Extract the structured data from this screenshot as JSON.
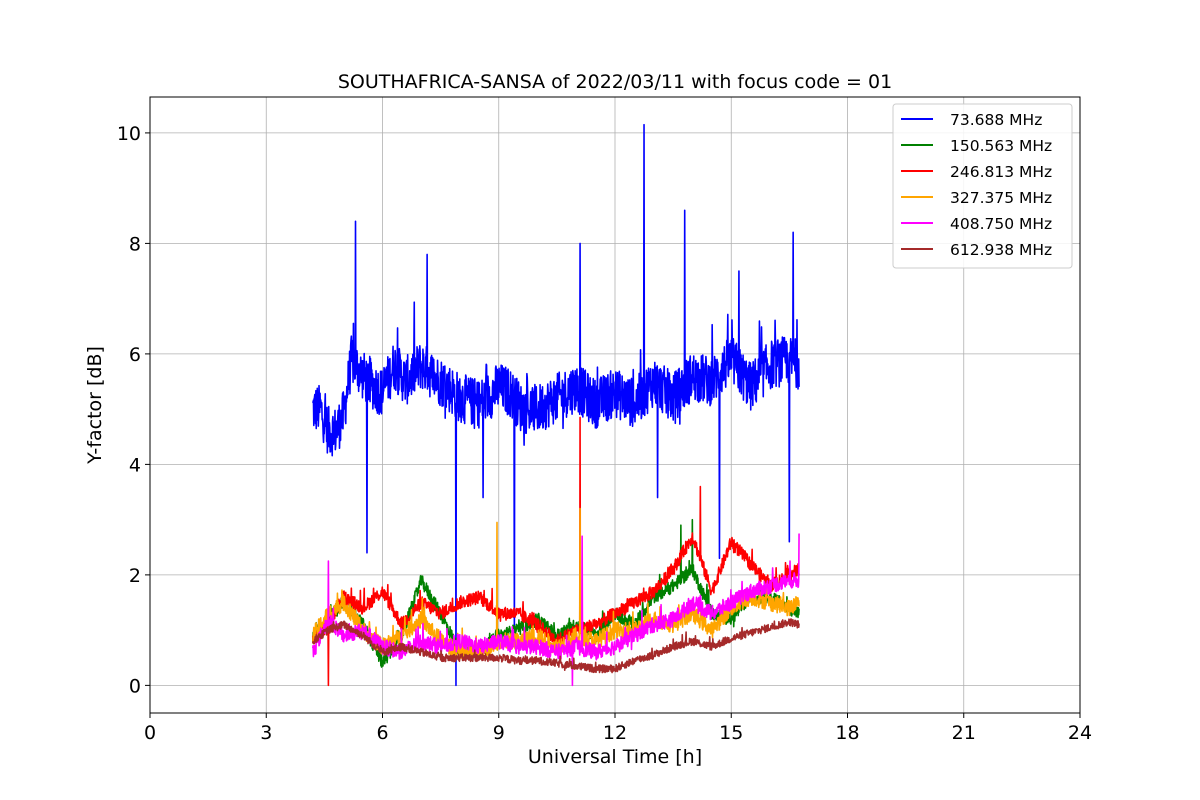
{
  "chart_data": {
    "type": "line",
    "title": "SOUTHAFRICA-SANSA of 2022/03/11 with focus code = 01",
    "xlabel": "Universal Time [h]",
    "ylabel": "Y-factor [dB]",
    "xlim": [
      0,
      24
    ],
    "ylim": [
      -0.5,
      10.65
    ],
    "xticks": [
      0,
      3,
      6,
      9,
      12,
      15,
      18,
      21,
      24
    ],
    "yticks": [
      0,
      2,
      4,
      6,
      8,
      10
    ],
    "grid": true,
    "legend_position": "top-right",
    "series": [
      {
        "name": "73.688 MHz",
        "color": "#0000ff",
        "noise": 0.45,
        "x": [
          4.2,
          4.4,
          4.6,
          4.8,
          5.0,
          5.2,
          5.5,
          5.8,
          6.0,
          6.3,
          6.6,
          7.0,
          7.3,
          7.7,
          8.0,
          8.5,
          9.0,
          9.3,
          9.6,
          10.0,
          10.5,
          11.0,
          11.5,
          12.0,
          12.5,
          13.0,
          13.5,
          14.0,
          14.5,
          15.0,
          15.5,
          16.0,
          16.5,
          16.75
        ],
        "y": [
          5.0,
          5.0,
          4.6,
          4.6,
          4.9,
          5.9,
          5.6,
          5.4,
          5.3,
          5.8,
          5.5,
          5.8,
          5.6,
          5.4,
          5.2,
          5.1,
          5.4,
          5.3,
          5.0,
          5.0,
          5.2,
          5.4,
          5.1,
          5.3,
          5.1,
          5.5,
          5.2,
          5.6,
          5.5,
          5.9,
          5.4,
          5.8,
          5.9,
          5.8
        ],
        "spikes": [
          [
            5.3,
            8.4
          ],
          [
            5.6,
            2.4
          ],
          [
            7.15,
            7.8
          ],
          [
            7.9,
            0.0
          ],
          [
            8.6,
            3.4
          ],
          [
            9.4,
            0.7
          ],
          [
            11.1,
            8.0
          ],
          [
            12.75,
            10.15
          ],
          [
            13.1,
            3.4
          ],
          [
            13.8,
            8.6
          ],
          [
            14.7,
            2.3
          ],
          [
            15.2,
            7.5
          ],
          [
            16.5,
            2.6
          ],
          [
            16.6,
            8.2
          ]
        ]
      },
      {
        "name": "150.563 MHz",
        "color": "#008000",
        "noise": 0.12,
        "x": [
          4.2,
          4.6,
          5.0,
          5.5,
          6.0,
          6.5,
          7.0,
          7.5,
          8.0,
          8.5,
          9.0,
          9.5,
          10.0,
          10.5,
          11.0,
          11.5,
          12.0,
          12.5,
          13.0,
          13.5,
          14.0,
          14.5,
          15.0,
          15.5,
          16.0,
          16.5,
          16.75
        ],
        "y": [
          0.9,
          1.2,
          1.5,
          1.1,
          0.4,
          0.9,
          1.9,
          1.3,
          0.6,
          0.6,
          0.9,
          1.0,
          1.2,
          0.9,
          1.1,
          0.9,
          1.3,
          1.1,
          1.6,
          1.8,
          2.1,
          1.3,
          1.2,
          1.6,
          1.6,
          1.4,
          1.3
        ],
        "spikes": [
          [
            13.7,
            2.9
          ],
          [
            14.0,
            3.0
          ]
        ]
      },
      {
        "name": "246.813 MHz",
        "color": "#ff0000",
        "noise": 0.12,
        "x": [
          4.2,
          4.6,
          5.0,
          5.5,
          6.0,
          6.5,
          7.0,
          7.5,
          8.0,
          8.5,
          9.0,
          9.5,
          10.0,
          10.5,
          11.0,
          11.5,
          12.0,
          12.5,
          13.0,
          13.5,
          14.0,
          14.5,
          15.0,
          15.5,
          16.0,
          16.5,
          16.75
        ],
        "y": [
          0.8,
          1.1,
          1.6,
          1.4,
          1.7,
          1.1,
          1.5,
          1.3,
          1.5,
          1.6,
          1.3,
          1.3,
          1.1,
          0.8,
          1.0,
          1.1,
          1.3,
          1.5,
          1.7,
          2.1,
          2.7,
          1.7,
          2.6,
          2.2,
          1.8,
          2.0,
          2.1
        ],
        "spikes": [
          [
            4.6,
            0.0
          ],
          [
            11.1,
            4.85
          ],
          [
            14.2,
            3.6
          ]
        ]
      },
      {
        "name": "327.375 MHz",
        "color": "#ffa500",
        "noise": 0.15,
        "x": [
          4.2,
          4.6,
          5.0,
          5.5,
          6.0,
          6.5,
          7.0,
          7.5,
          8.0,
          8.5,
          9.0,
          9.5,
          10.0,
          10.5,
          11.0,
          11.5,
          12.0,
          12.5,
          13.0,
          13.5,
          14.0,
          14.5,
          15.0,
          15.5,
          16.0,
          16.5,
          16.75
        ],
        "y": [
          0.9,
          1.3,
          1.5,
          1.0,
          0.7,
          0.9,
          1.2,
          0.8,
          0.6,
          0.6,
          0.8,
          0.8,
          0.9,
          0.7,
          0.9,
          0.8,
          1.0,
          1.0,
          1.2,
          1.1,
          1.3,
          1.0,
          1.4,
          1.6,
          1.5,
          1.4,
          1.5
        ],
        "spikes": [
          [
            8.95,
            2.95
          ],
          [
            11.1,
            3.2
          ]
        ]
      },
      {
        "name": "408.750 MHz",
        "color": "#ff00ff",
        "noise": 0.14,
        "x": [
          4.2,
          4.6,
          5.0,
          5.5,
          6.0,
          6.5,
          7.0,
          7.5,
          8.0,
          8.5,
          9.0,
          9.5,
          10.0,
          10.5,
          11.0,
          11.5,
          12.0,
          12.5,
          13.0,
          13.5,
          14.0,
          14.5,
          15.0,
          15.5,
          16.0,
          16.5,
          16.75
        ],
        "y": [
          0.6,
          1.2,
          0.9,
          1.0,
          0.7,
          0.6,
          0.8,
          0.7,
          0.8,
          0.7,
          0.8,
          0.7,
          0.7,
          0.6,
          0.7,
          0.6,
          0.7,
          0.9,
          1.1,
          1.2,
          1.5,
          1.3,
          1.5,
          1.7,
          1.8,
          1.9,
          1.9
        ],
        "spikes": [
          [
            4.6,
            2.25
          ],
          [
            10.9,
            0.0
          ],
          [
            11.15,
            2.7
          ],
          [
            16.75,
            2.75
          ]
        ]
      },
      {
        "name": "612.938 MHz",
        "color": "#a52a2a",
        "noise": 0.07,
        "x": [
          4.2,
          4.6,
          5.0,
          5.5,
          6.0,
          6.5,
          7.0,
          7.5,
          8.0,
          8.5,
          9.0,
          9.5,
          10.0,
          10.5,
          11.0,
          11.5,
          12.0,
          12.5,
          13.0,
          13.5,
          14.0,
          14.5,
          15.0,
          15.5,
          16.0,
          16.5,
          16.75
        ],
        "y": [
          0.8,
          1.0,
          1.1,
          0.9,
          0.6,
          0.7,
          0.6,
          0.5,
          0.5,
          0.5,
          0.5,
          0.45,
          0.45,
          0.4,
          0.35,
          0.3,
          0.3,
          0.45,
          0.55,
          0.7,
          0.8,
          0.7,
          0.85,
          0.95,
          1.05,
          1.15,
          1.1
        ],
        "spikes": []
      }
    ]
  }
}
